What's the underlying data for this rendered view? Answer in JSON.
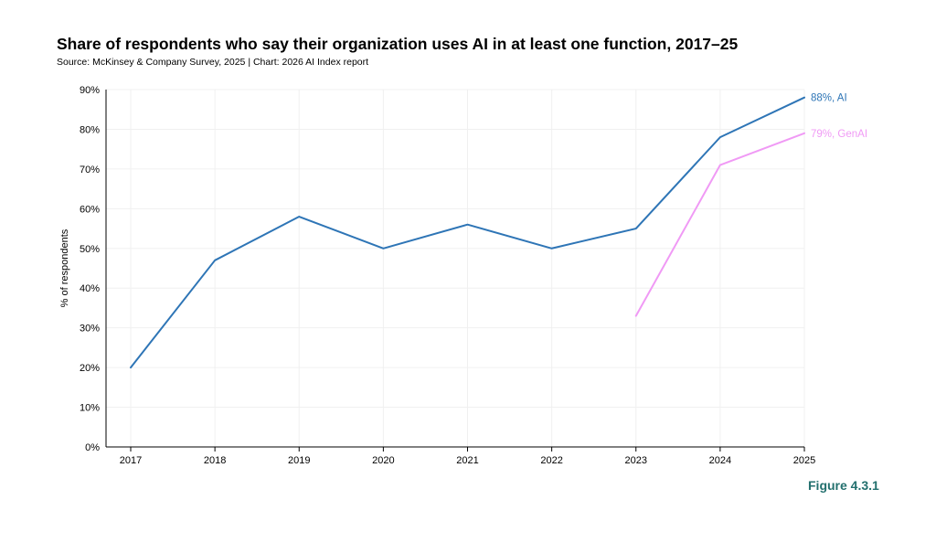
{
  "chart_data": {
    "type": "line",
    "title": "Share of respondents who say their organization uses AI in at least one function, 2017–25",
    "subtitle": "Source: McKinsey & Company Survey, 2025 | Chart: 2026 AI Index report",
    "xlabel": "",
    "ylabel": "% of respondents",
    "x": [
      "2017",
      "2018",
      "2019",
      "2020",
      "2021",
      "2022",
      "2023",
      "2024",
      "2025"
    ],
    "ylim": [
      0,
      90
    ],
    "yticks": [
      0,
      10,
      20,
      30,
      40,
      50,
      60,
      70,
      80,
      90
    ],
    "ytick_labels": [
      "0%",
      "10%",
      "20%",
      "30%",
      "40%",
      "50%",
      "60%",
      "70%",
      "80%",
      "90%"
    ],
    "grid": true,
    "series": [
      {
        "name": "AI",
        "color": "#2e75b6",
        "x": [
          "2017",
          "2018",
          "2019",
          "2020",
          "2021",
          "2022",
          "2023",
          "2024",
          "2025"
        ],
        "values": [
          20,
          47,
          58,
          50,
          56,
          50,
          55,
          78,
          88
        ],
        "end_label": "88%, AI"
      },
      {
        "name": "GenAI",
        "color": "#f09af5",
        "x": [
          "2023",
          "2024",
          "2025"
        ],
        "values": [
          33,
          71,
          79
        ],
        "end_label": "79%, GenAI"
      }
    ]
  },
  "figure_label": "Figure 4.3.1"
}
